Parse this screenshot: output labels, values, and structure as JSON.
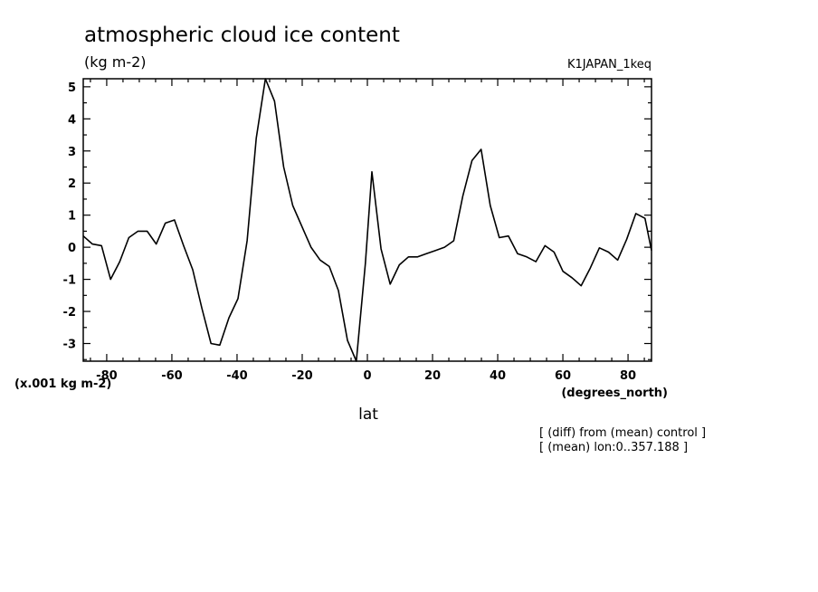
{
  "chart_data": {
    "type": "line",
    "title": "atmospheric cloud ice content",
    "units": "(kg m-2)",
    "run_label": "K1JAPAN_1keq",
    "scale_label": "(x.001 kg m-2)",
    "xunits": "(degrees_north)",
    "xlabel": "lat",
    "notes": [
      "[ (diff) from (mean) control ]",
      "[ (mean) lon:0..357.188 ]"
    ],
    "xlim": [
      -87.2,
      87.2
    ],
    "ylim": [
      -3.55,
      5.25
    ],
    "xticks": [
      -80,
      -60,
      -40,
      -20,
      0,
      20,
      40,
      60,
      80
    ],
    "xtick_labels": [
      "-80",
      "-60",
      "-40",
      "-20",
      "0",
      "20",
      "40",
      "60",
      "80"
    ],
    "yticks": [
      -3,
      -2,
      -1,
      0,
      1,
      2,
      3,
      4,
      5
    ],
    "ytick_labels": [
      "-3",
      "-2",
      "-1",
      "0",
      "1",
      "2",
      "3",
      "4",
      "5"
    ],
    "grid": false,
    "series": [
      {
        "x": [
          -87.2,
          -84.4,
          -81.6,
          -78.8,
          -76.0,
          -73.2,
          -70.4,
          -67.6,
          -64.8,
          -62.0,
          -59.2,
          -56.4,
          -53.6,
          -50.8,
          -48.0,
          -45.3,
          -42.5,
          -39.7,
          -36.9,
          -34.1,
          -31.3,
          -28.5,
          -25.7,
          -22.9,
          -20.1,
          -17.3,
          -14.5,
          -11.7,
          -8.9,
          -6.1,
          -3.4,
          -0.6,
          1.4,
          4.2,
          7.0,
          9.8,
          12.6,
          15.4,
          18.1,
          20.9,
          23.7,
          26.5,
          29.3,
          32.1,
          34.9,
          37.7,
          40.5,
          43.3,
          46.1,
          48.9,
          51.7,
          54.5,
          57.3,
          60.0,
          62.8,
          65.6,
          68.4,
          71.2,
          74.0,
          76.8,
          79.6,
          82.4,
          85.2,
          87.2
        ],
        "values": [
          0.35,
          0.1,
          0.05,
          -1.0,
          -0.45,
          0.3,
          0.5,
          0.5,
          0.1,
          0.75,
          0.85,
          0.05,
          -0.7,
          -1.9,
          -3.0,
          -3.05,
          -2.2,
          -1.6,
          0.2,
          3.4,
          5.25,
          4.55,
          2.5,
          1.3,
          0.65,
          0.0,
          -0.4,
          -0.6,
          -1.35,
          -2.9,
          -3.55,
          -0.5,
          2.35,
          -0.05,
          -1.15,
          -0.55,
          -0.3,
          -0.3,
          -0.2,
          -0.1,
          0.0,
          0.2,
          1.6,
          2.7,
          3.05,
          1.3,
          0.3,
          0.35,
          -0.2,
          -0.3,
          -0.45,
          0.05,
          -0.15,
          -0.75,
          -0.95,
          -1.2,
          -0.65,
          -0.02,
          -0.15,
          -0.4,
          0.25,
          1.05,
          0.9,
          -0.1
        ]
      }
    ]
  }
}
